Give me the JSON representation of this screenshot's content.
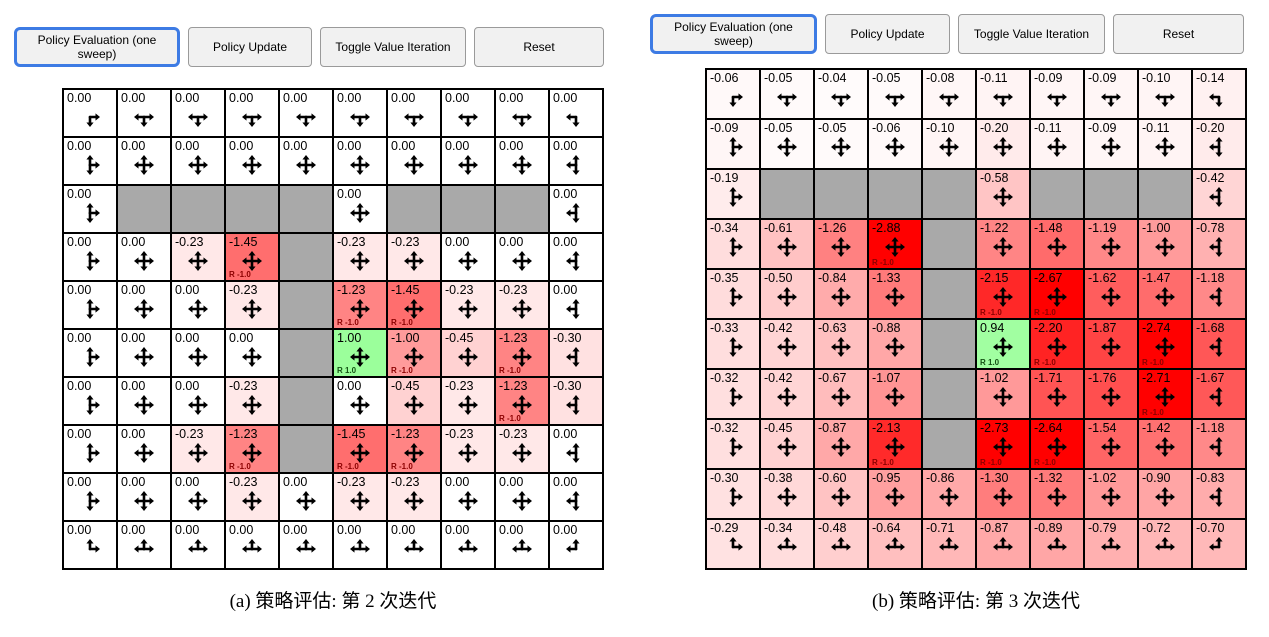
{
  "toolbar": {
    "buttons": [
      {
        "label": "Policy Evaluation (one sweep)",
        "active": true
      },
      {
        "label": "Policy Update",
        "active": false
      },
      {
        "label": "Toggle Value Iteration",
        "active": false
      },
      {
        "label": "Reset",
        "active": false
      }
    ]
  },
  "colors": {
    "wall": "#a9a9a9",
    "active_button_border": "#3d7be4",
    "button_background": "#f1f1f1",
    "goal_cell_example": "rgb(161,255,161)",
    "max_negative_cell": "rgb(255,0,0)",
    "reward_negative_text": "#8b0000",
    "reward_positive_text": "#145214",
    "grid_line": "#000000"
  },
  "panels": [
    {
      "caption": "(a) 策略评估: 第 2 次迭代",
      "grid": {
        "rows": 10,
        "cols": 10,
        "cells": [
          [
            [
              "0.00"
            ],
            [
              "0.00"
            ],
            [
              "0.00"
            ],
            [
              "0.00"
            ],
            [
              "0.00"
            ],
            [
              "0.00"
            ],
            [
              "0.00"
            ],
            [
              "0.00"
            ],
            [
              "0.00"
            ],
            [
              "0.00"
            ]
          ],
          [
            [
              "0.00"
            ],
            [
              "0.00"
            ],
            [
              "0.00"
            ],
            [
              "0.00"
            ],
            [
              "0.00"
            ],
            [
              "0.00"
            ],
            [
              "0.00"
            ],
            [
              "0.00"
            ],
            [
              "0.00"
            ],
            [
              "0.00"
            ]
          ],
          [
            [
              "0.00"
            ],
            "W",
            "W",
            "W",
            "W",
            [
              "0.00"
            ],
            "W",
            "W",
            "W",
            [
              "0.00"
            ]
          ],
          [
            [
              "0.00"
            ],
            [
              "0.00"
            ],
            [
              "-0.23"
            ],
            [
              "-1.45",
              "R -1.0"
            ],
            "W",
            [
              "-0.23"
            ],
            [
              "-0.23"
            ],
            [
              "0.00"
            ],
            [
              "0.00"
            ],
            [
              "0.00"
            ]
          ],
          [
            [
              "0.00"
            ],
            [
              "0.00"
            ],
            [
              "0.00"
            ],
            [
              "-0.23"
            ],
            "W",
            [
              "-1.23",
              "R -1.0"
            ],
            [
              "-1.45",
              "R -1.0"
            ],
            [
              "-0.23"
            ],
            [
              "-0.23"
            ],
            [
              "0.00"
            ]
          ],
          [
            [
              "0.00"
            ],
            [
              "0.00"
            ],
            [
              "0.00"
            ],
            [
              "0.00"
            ],
            "W",
            [
              "1.00",
              "R 1.0"
            ],
            [
              "-1.00",
              "R -1.0"
            ],
            [
              "-0.45"
            ],
            [
              "-1.23",
              "R -1.0"
            ],
            [
              "-0.30"
            ]
          ],
          [
            [
              "0.00"
            ],
            [
              "0.00"
            ],
            [
              "0.00"
            ],
            [
              "-0.23"
            ],
            "W",
            [
              "0.00"
            ],
            [
              "-0.45"
            ],
            [
              "-0.23"
            ],
            [
              "-1.23",
              "R -1.0"
            ],
            [
              "-0.30"
            ]
          ],
          [
            [
              "0.00"
            ],
            [
              "0.00"
            ],
            [
              "-0.23"
            ],
            [
              "-1.23",
              "R -1.0"
            ],
            "W",
            [
              "-1.45",
              "R -1.0"
            ],
            [
              "-1.23",
              "R -1.0"
            ],
            [
              "-0.23"
            ],
            [
              "-0.23"
            ],
            [
              "0.00"
            ]
          ],
          [
            [
              "0.00"
            ],
            [
              "0.00"
            ],
            [
              "0.00"
            ],
            [
              "-0.23"
            ],
            [
              "0.00"
            ],
            [
              "-0.23"
            ],
            [
              "-0.23"
            ],
            [
              "0.00"
            ],
            [
              "0.00"
            ],
            [
              "0.00"
            ]
          ],
          [
            [
              "0.00"
            ],
            [
              "0.00"
            ],
            [
              "0.00"
            ],
            [
              "0.00"
            ],
            [
              "0.00"
            ],
            [
              "0.00"
            ],
            [
              "0.00"
            ],
            [
              "0.00"
            ],
            [
              "0.00"
            ],
            [
              "0.00"
            ]
          ]
        ]
      }
    },
    {
      "caption": "(b) 策略评估: 第 3 次迭代",
      "grid": {
        "rows": 10,
        "cols": 10,
        "cells": [
          [
            [
              "-0.06"
            ],
            [
              "-0.05"
            ],
            [
              "-0.04"
            ],
            [
              "-0.05"
            ],
            [
              "-0.08"
            ],
            [
              "-0.11"
            ],
            [
              "-0.09"
            ],
            [
              "-0.09"
            ],
            [
              "-0.10"
            ],
            [
              "-0.14"
            ]
          ],
          [
            [
              "-0.09"
            ],
            [
              "-0.05"
            ],
            [
              "-0.05"
            ],
            [
              "-0.06"
            ],
            [
              "-0.10"
            ],
            [
              "-0.20"
            ],
            [
              "-0.11"
            ],
            [
              "-0.09"
            ],
            [
              "-0.11"
            ],
            [
              "-0.20"
            ]
          ],
          [
            [
              "-0.19"
            ],
            "W",
            "W",
            "W",
            "W",
            [
              "-0.58"
            ],
            "W",
            "W",
            "W",
            [
              "-0.42"
            ]
          ],
          [
            [
              "-0.34"
            ],
            [
              "-0.61"
            ],
            [
              "-1.26"
            ],
            [
              "-2.88",
              "R -1.0"
            ],
            "W",
            [
              "-1.22"
            ],
            [
              "-1.48"
            ],
            [
              "-1.19"
            ],
            [
              "-1.00"
            ],
            [
              "-0.78"
            ]
          ],
          [
            [
              "-0.35"
            ],
            [
              "-0.50"
            ],
            [
              "-0.84"
            ],
            [
              "-1.33"
            ],
            "W",
            [
              "-2.15",
              "R -1.0"
            ],
            [
              "-2.67",
              "R -1.0"
            ],
            [
              "-1.62"
            ],
            [
              "-1.47"
            ],
            [
              "-1.18"
            ]
          ],
          [
            [
              "-0.33"
            ],
            [
              "-0.42"
            ],
            [
              "-0.63"
            ],
            [
              "-0.88"
            ],
            "W",
            [
              "0.94",
              "R 1.0"
            ],
            [
              "-2.20",
              "R -1.0"
            ],
            [
              "-1.87"
            ],
            [
              "-2.74",
              "R -1.0"
            ],
            [
              "-1.68"
            ]
          ],
          [
            [
              "-0.32"
            ],
            [
              "-0.42"
            ],
            [
              "-0.67"
            ],
            [
              "-1.07"
            ],
            "W",
            [
              "-1.02"
            ],
            [
              "-1.71"
            ],
            [
              "-1.76"
            ],
            [
              "-2.71",
              "R -1.0"
            ],
            [
              "-1.67"
            ]
          ],
          [
            [
              "-0.32"
            ],
            [
              "-0.45"
            ],
            [
              "-0.87"
            ],
            [
              "-2.13",
              "R -1.0"
            ],
            "W",
            [
              "-2.73",
              "R -1.0"
            ],
            [
              "-2.64",
              "R -1.0"
            ],
            [
              "-1.54"
            ],
            [
              "-1.42"
            ],
            [
              "-1.18"
            ]
          ],
          [
            [
              "-0.30"
            ],
            [
              "-0.38"
            ],
            [
              "-0.60"
            ],
            [
              "-0.95"
            ],
            [
              "-0.86"
            ],
            [
              "-1.30"
            ],
            [
              "-1.32"
            ],
            [
              "-1.02"
            ],
            [
              "-0.90"
            ],
            [
              "-0.83"
            ]
          ],
          [
            [
              "-0.29"
            ],
            [
              "-0.34"
            ],
            [
              "-0.48"
            ],
            [
              "-0.64"
            ],
            [
              "-0.71"
            ],
            [
              "-0.87"
            ],
            [
              "-0.89"
            ],
            [
              "-0.79"
            ],
            [
              "-0.72"
            ],
            [
              "-0.70"
            ]
          ]
        ]
      }
    }
  ]
}
